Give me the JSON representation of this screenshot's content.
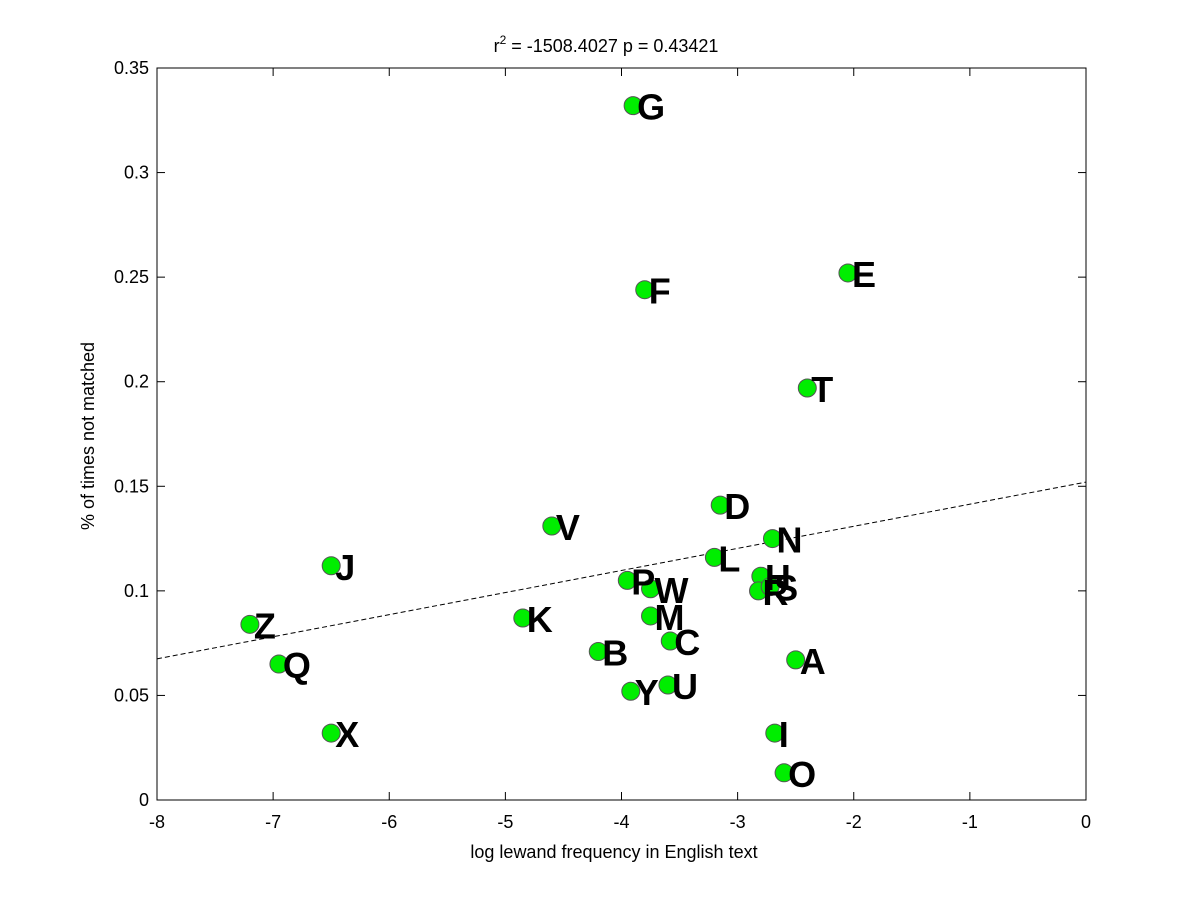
{
  "chart_data": {
    "type": "scatter",
    "title": {
      "r_symbol": "r",
      "r_exponent": "2",
      "r_value_text": " = -1508.4027 p = 0.43421"
    },
    "xlabel": "log lewand frequency in English text",
    "ylabel": "% of times not matched",
    "xlim": [
      -8,
      0
    ],
    "ylim": [
      0,
      0.35
    ],
    "x_ticks": [
      -8,
      -7,
      -6,
      -5,
      -4,
      -3,
      -2,
      -1,
      0
    ],
    "x_tick_labels": [
      "-8",
      "-7",
      "-6",
      "-5",
      "-4",
      "-3",
      "-2",
      "-1",
      "0"
    ],
    "y_ticks": [
      0,
      0.05,
      0.1,
      0.15,
      0.2,
      0.25,
      0.3,
      0.35
    ],
    "y_tick_labels": [
      "0",
      "0.05",
      "0.1",
      "0.15",
      "0.2",
      "0.25",
      "0.3",
      "0.35"
    ],
    "grid": false,
    "marker_color": "#00ee00",
    "marker_edge_color": "#555555",
    "trend_line_color": "#000000",
    "trend_line": {
      "style": "dashed",
      "x": [
        -8,
        0
      ],
      "y": [
        0.0675,
        0.152
      ]
    },
    "points": [
      {
        "label": "G",
        "x": -3.9,
        "y": 0.332
      },
      {
        "label": "E",
        "x": -2.05,
        "y": 0.252
      },
      {
        "label": "F",
        "x": -3.8,
        "y": 0.244
      },
      {
        "label": "T",
        "x": -2.4,
        "y": 0.197
      },
      {
        "label": "D",
        "x": -3.15,
        "y": 0.141
      },
      {
        "label": "V",
        "x": -4.6,
        "y": 0.131
      },
      {
        "label": "N",
        "x": -2.7,
        "y": 0.125
      },
      {
        "label": "L",
        "x": -3.2,
        "y": 0.116
      },
      {
        "label": "J",
        "x": -6.5,
        "y": 0.112
      },
      {
        "label": "H",
        "x": -2.8,
        "y": 0.107
      },
      {
        "label": "P",
        "x": -3.95,
        "y": 0.105
      },
      {
        "label": "W",
        "x": -3.75,
        "y": 0.101
      },
      {
        "label": "R",
        "x": -2.82,
        "y": 0.1
      },
      {
        "label": "S",
        "x": -2.72,
        "y": 0.102
      },
      {
        "label": "M",
        "x": -3.75,
        "y": 0.088
      },
      {
        "label": "K",
        "x": -4.85,
        "y": 0.087
      },
      {
        "label": "Z",
        "x": -7.2,
        "y": 0.084
      },
      {
        "label": "C",
        "x": -3.58,
        "y": 0.076
      },
      {
        "label": "B",
        "x": -4.2,
        "y": 0.071
      },
      {
        "label": "A",
        "x": -2.5,
        "y": 0.067
      },
      {
        "label": "Q",
        "x": -6.95,
        "y": 0.065
      },
      {
        "label": "U",
        "x": -3.6,
        "y": 0.055
      },
      {
        "label": "Y",
        "x": -3.92,
        "y": 0.052
      },
      {
        "label": "X",
        "x": -6.5,
        "y": 0.032
      },
      {
        "label": "I",
        "x": -2.68,
        "y": 0.032
      },
      {
        "label": "O",
        "x": -2.6,
        "y": 0.013
      }
    ]
  }
}
